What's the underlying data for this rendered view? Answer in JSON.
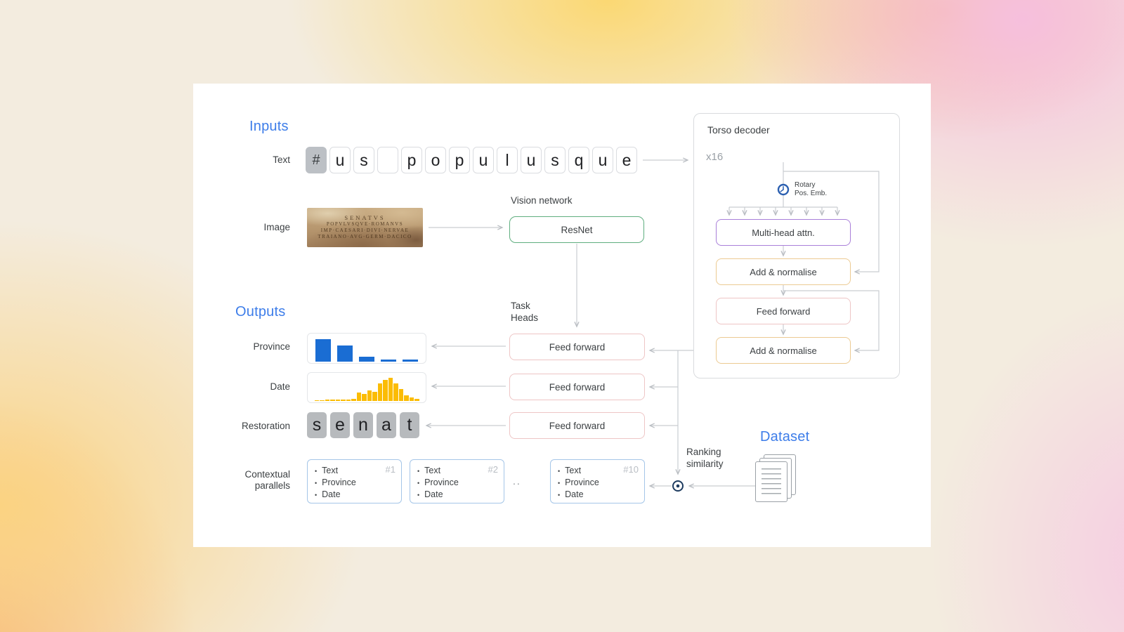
{
  "inputs": {
    "heading": "Inputs",
    "text_label": "Text",
    "tokens": [
      "#",
      "u",
      "s",
      "",
      "p",
      "o",
      "p",
      "u",
      "l",
      "u",
      "s",
      "q",
      "u",
      "e"
    ],
    "image_label": "Image",
    "vision_network_label": "Vision network",
    "resnet_label": "ResNet",
    "inscription_lines": [
      "SENATVS",
      "POPVLVSQVE·ROMANVS",
      "IMP·CAESARI·DIVI·NERVAE",
      "TRAIANO·AVG·GERM·DACICO"
    ]
  },
  "torso": {
    "title": "Torso decoder",
    "repeat_label": "x16",
    "rotary_label_lines": [
      "Rotary",
      "Pos. Emb."
    ],
    "blocks": [
      {
        "label": "Multi-head attn."
      },
      {
        "label": "Add & normalise"
      },
      {
        "label": "Feed forward"
      },
      {
        "label": "Add & normalise"
      }
    ]
  },
  "task_heads": {
    "label_lines": [
      "Task",
      "Heads"
    ],
    "feed_forward_label": "Feed forward"
  },
  "outputs": {
    "heading": "Outputs",
    "province_label": "Province",
    "date_label": "Date",
    "restoration_label": "Restoration",
    "restoration_tokens": [
      "s",
      "e",
      "n",
      "a",
      "t"
    ]
  },
  "chart_data": [
    {
      "type": "bar",
      "name": "province-distribution",
      "values": [
        0.8,
        0.58,
        0.18,
        0.08,
        0.08
      ],
      "color": "#1a6dd3"
    },
    {
      "type": "bar",
      "name": "date-distribution",
      "values": [
        0.03,
        0.03,
        0.04,
        0.04,
        0.05,
        0.05,
        0.06,
        0.08,
        0.3,
        0.25,
        0.38,
        0.32,
        0.62,
        0.75,
        0.82,
        0.62,
        0.42,
        0.2,
        0.12,
        0.07
      ],
      "color": "#fbbc04"
    }
  ],
  "parallels": {
    "label_lines": [
      "Contextual",
      "parallels"
    ],
    "items": [
      "Text",
      "Province",
      "Date"
    ],
    "boxes": [
      {
        "id": "#1"
      },
      {
        "id": "#2"
      },
      {
        "id": "#10"
      }
    ],
    "ellipsis": ".."
  },
  "ranking": {
    "label_lines": [
      "Ranking",
      "similarity"
    ]
  },
  "dataset": {
    "heading": "Dataset"
  },
  "colors": {
    "heading_blue": "#3d7de9",
    "province_bar": "#1a6dd3",
    "date_bar": "#fbbc04",
    "token_gray": "#bcc0c5",
    "restoration_gray": "#b7babd",
    "resnet_border": "#5fae7f",
    "attn_border": "#a97fd9",
    "addnorm_border": "#ecca92",
    "feedforward_border": "#eec5c5",
    "parallel_border": "#a5c6e8",
    "line_gray": "#c9cdd1"
  }
}
